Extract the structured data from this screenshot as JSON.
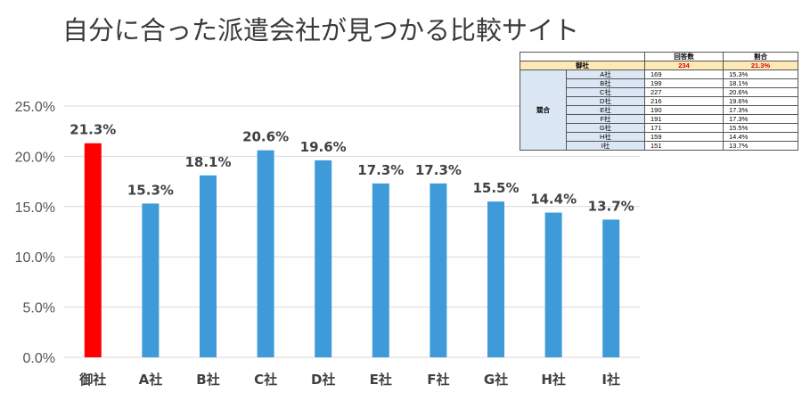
{
  "title": "自分に合った派遣会社が見つかる比較サイト",
  "chart_data": {
    "type": "bar",
    "categories": [
      "御社",
      "A社",
      "B社",
      "C社",
      "D社",
      "E社",
      "F社",
      "G社",
      "H社",
      "I社"
    ],
    "values": [
      21.3,
      15.3,
      18.1,
      20.6,
      19.6,
      17.3,
      17.3,
      15.5,
      14.4,
      13.7
    ],
    "value_labels": [
      "21.3%",
      "15.3%",
      "18.1%",
      "20.6%",
      "19.6%",
      "17.3%",
      "17.3%",
      "15.5%",
      "14.4%",
      "13.7%"
    ],
    "ylim": [
      0,
      25
    ],
    "yticks": [
      0,
      5,
      10,
      15,
      20,
      25
    ],
    "ytick_labels": [
      "0.0%",
      "5.0%",
      "10.0%",
      "15.0%",
      "20.0%",
      "25.0%"
    ],
    "grid": true,
    "colors": {
      "highlight": "#ff0000",
      "bar": "#3f9ad9",
      "grid": "#d9d9d9"
    }
  },
  "table": {
    "headers": [
      "回答数",
      "割合"
    ],
    "own": {
      "label": "御社",
      "count": "234",
      "ratio": "21.3%"
    },
    "group_label": "競合",
    "rows": [
      {
        "name": "A社",
        "count": "169",
        "ratio": "15.3%"
      },
      {
        "name": "B社",
        "count": "199",
        "ratio": "18.1%"
      },
      {
        "name": "C社",
        "count": "227",
        "ratio": "20.6%"
      },
      {
        "name": "D社",
        "count": "216",
        "ratio": "19.6%"
      },
      {
        "name": "E社",
        "count": "190",
        "ratio": "17.3%"
      },
      {
        "name": "F社",
        "count": "191",
        "ratio": "17.3%"
      },
      {
        "name": "G社",
        "count": "171",
        "ratio": "15.5%"
      },
      {
        "name": "H社",
        "count": "159",
        "ratio": "14.4%"
      },
      {
        "name": "I社",
        "count": "151",
        "ratio": "13.7%"
      }
    ]
  }
}
